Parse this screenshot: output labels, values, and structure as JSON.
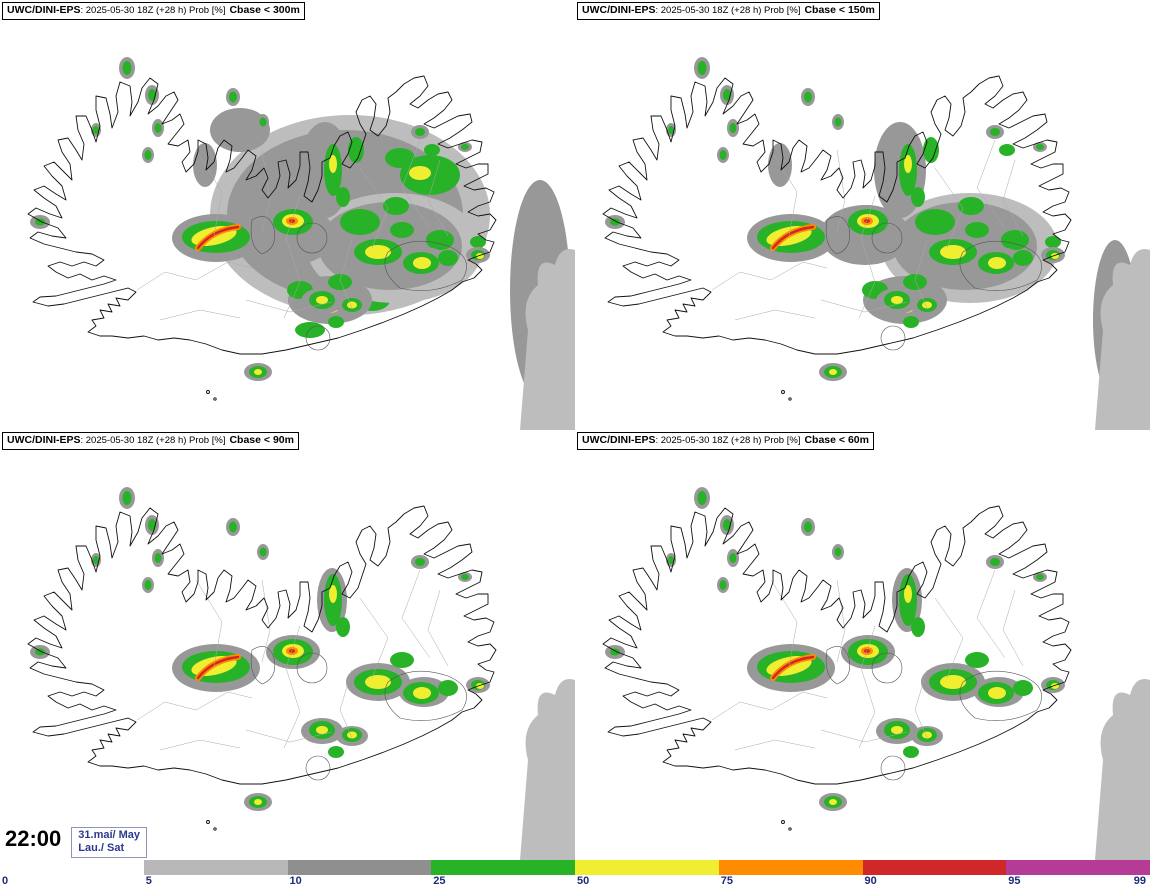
{
  "model": "UWC/DINI-EPS",
  "run_info": ": 2025-05-30 18Z (+28 h) Prob [%]",
  "panels": [
    {
      "threshold": "Cbase < 300m",
      "layers": [
        "heavy",
        "medium",
        "base"
      ]
    },
    {
      "threshold": "Cbase < 150m",
      "layers": [
        "medium",
        "base"
      ]
    },
    {
      "threshold": "Cbase < 90m",
      "layers": [
        "base"
      ]
    },
    {
      "threshold": "Cbase < 60m",
      "layers": [
        "base"
      ]
    }
  ],
  "footer": {
    "time": "22:00",
    "date_line1": "31.maí/ May",
    "date_line2": "Lau./ Sat"
  },
  "legend": {
    "tick_labels": [
      "0",
      "5",
      "10",
      "25",
      "50",
      "75",
      "90",
      "95",
      "99"
    ],
    "segment_colors": [
      "#ffffff",
      "#b8b8b8",
      "#8f8f8f",
      "#28b228",
      "#f0ee30",
      "#ff8c00",
      "#d02828",
      "#b43c96"
    ],
    "label_color": "#1f2a7a"
  },
  "chart_data": {
    "type": "heatmap",
    "title": "UWC/DINI-EPS cloud base probability maps (Iceland)",
    "run": "2025-05-30 18Z (+28 h)",
    "variable": "Prob [%]",
    "valid_time": "22:00 31.maí/ May Lau./ Sat",
    "thresholds": [
      "Cbase < 300m",
      "Cbase < 150m",
      "Cbase < 90m",
      "Cbase < 60m"
    ],
    "probability_scale": [
      0,
      5,
      10,
      25,
      50,
      75,
      90,
      95,
      99
    ]
  }
}
